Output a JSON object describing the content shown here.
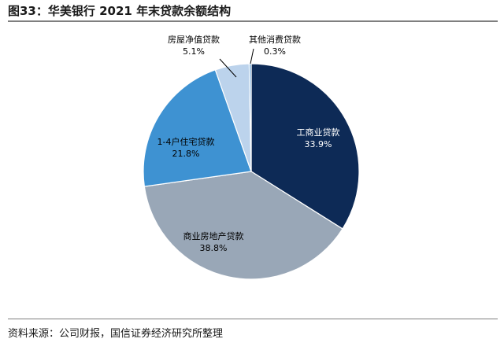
{
  "figure_title": "图33：华美银行 2021 年末贷款余额结构",
  "source": "资料来源：公司财报，国信证券经济研究所整理",
  "chart_data": {
    "type": "pie",
    "slices": [
      {
        "label": "工商业贷款",
        "value": 33.9,
        "value_text": "33.9%",
        "color": "#0d2a56"
      },
      {
        "label": "商业房地产贷款",
        "value": 38.8,
        "value_text": "38.8%",
        "color": "#99a7b7"
      },
      {
        "label": "1-4户住宅贷款",
        "value": 21.8,
        "value_text": "21.8%",
        "color": "#3e92d2"
      },
      {
        "label": "房屋净值贷款",
        "value": 5.1,
        "value_text": "5.1%",
        "color": "#bcd3ec"
      },
      {
        "label": "其他消费贷款",
        "value": 0.3,
        "value_text": "0.3%",
        "color": "#6aa5d8"
      }
    ]
  }
}
